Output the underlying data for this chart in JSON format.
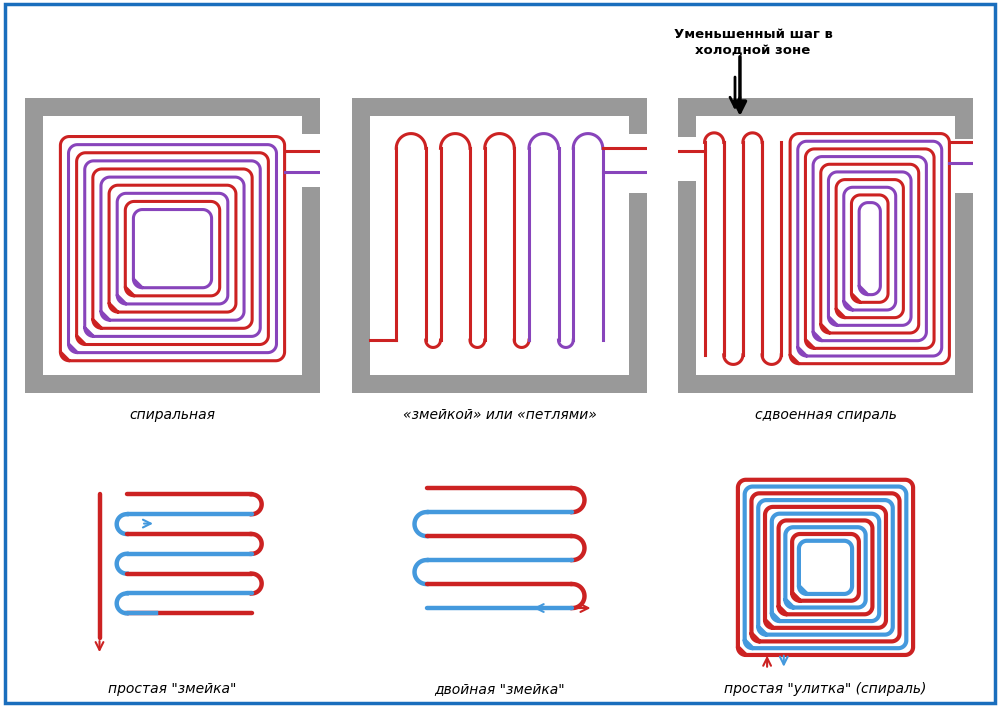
{
  "bg_color": "#ffffff",
  "border_color": "#1a6ebd",
  "wall_color": "#999999",
  "red_color": "#cc2222",
  "blue_color": "#4499dd",
  "purple_color": "#8844bb",
  "labels": [
    "спиральная",
    "«змейкой» или «петлями»",
    "сдвоенная спираль",
    "простая \"змейка\"",
    "двойная \"змейка\"",
    "простая \"улитка\" (спираль)"
  ],
  "annotation": "Уменьшенный шаг в\nхолодной зоне"
}
